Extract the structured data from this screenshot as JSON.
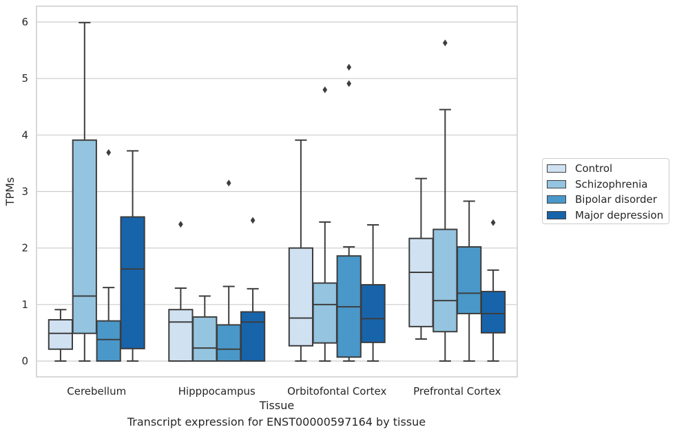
{
  "chart_data": {
    "type": "box",
    "title": "",
    "caption": "Transcript expression for ENST00000597164 by tissue",
    "xlabel": "Tissue",
    "ylabel": "TPMs",
    "ylim": [
      -0.28,
      6.28
    ],
    "yticks": [
      "0",
      "1",
      "2",
      "3",
      "4",
      "5",
      "6"
    ],
    "grid": "horizontal",
    "legend_position": "right",
    "categories": [
      "Cerebellum",
      "Hipppocampus",
      "Orbitofontal Cortex",
      "Prefrontal Cortex"
    ],
    "series": [
      {
        "name": "Control",
        "color": "#d0e1f2",
        "boxes": [
          {
            "whislo": 0,
            "q1": 0.21,
            "med": 0.49,
            "q3": 0.73,
            "whishi": 0.91,
            "fliers": []
          },
          {
            "whislo": 0,
            "q1": 0,
            "med": 0.69,
            "q3": 0.91,
            "whishi": 1.29,
            "fliers": [
              2.42
            ]
          },
          {
            "whislo": 0,
            "q1": 0.27,
            "med": 0.76,
            "q3": 2.0,
            "whishi": 3.91,
            "fliers": []
          },
          {
            "whislo": 0.39,
            "q1": 0.61,
            "med": 1.57,
            "q3": 2.17,
            "whishi": 3.23,
            "fliers": []
          }
        ]
      },
      {
        "name": "Schizophrenia",
        "color": "#94c4df",
        "boxes": [
          {
            "whislo": 0,
            "q1": 0.49,
            "med": 1.15,
            "q3": 3.91,
            "whishi": 5.99,
            "fliers": []
          },
          {
            "whislo": 0,
            "q1": 0,
            "med": 0.23,
            "q3": 0.78,
            "whishi": 1.15,
            "fliers": []
          },
          {
            "whislo": 0,
            "q1": 0.32,
            "med": 1.0,
            "q3": 1.38,
            "whishi": 2.46,
            "fliers": [
              4.8
            ]
          },
          {
            "whislo": 0,
            "q1": 0.52,
            "med": 1.07,
            "q3": 2.33,
            "whishi": 4.45,
            "fliers": [
              5.63
            ]
          }
        ]
      },
      {
        "name": "Bipolar disorder",
        "color": "#4a98c9",
        "boxes": [
          {
            "whislo": 0,
            "q1": 0,
            "med": 0.38,
            "q3": 0.71,
            "whishi": 1.3,
            "fliers": [
              3.69
            ]
          },
          {
            "whislo": 0,
            "q1": 0,
            "med": 0.21,
            "q3": 0.64,
            "whishi": 1.32,
            "fliers": [
              3.15
            ]
          },
          {
            "whislo": 0,
            "q1": 0.07,
            "med": 0.96,
            "q3": 1.86,
            "whishi": 2.02,
            "fliers": [
              4.91,
              5.2
            ]
          },
          {
            "whislo": 0,
            "q1": 0.84,
            "med": 1.2,
            "q3": 2.02,
            "whishi": 2.83,
            "fliers": []
          }
        ]
      },
      {
        "name": "Major depression",
        "color": "#1764ab",
        "boxes": [
          {
            "whislo": 0,
            "q1": 0.22,
            "med": 1.63,
            "q3": 2.55,
            "whishi": 3.72,
            "fliers": []
          },
          {
            "whislo": 0,
            "q1": 0,
            "med": 0.69,
            "q3": 0.87,
            "whishi": 1.28,
            "fliers": [
              2.49
            ]
          },
          {
            "whislo": 0,
            "q1": 0.33,
            "med": 0.75,
            "q3": 1.35,
            "whishi": 2.41,
            "fliers": []
          },
          {
            "whislo": 0,
            "q1": 0.5,
            "med": 0.84,
            "q3": 1.23,
            "whishi": 1.61,
            "fliers": [
              2.45
            ]
          }
        ]
      }
    ]
  }
}
